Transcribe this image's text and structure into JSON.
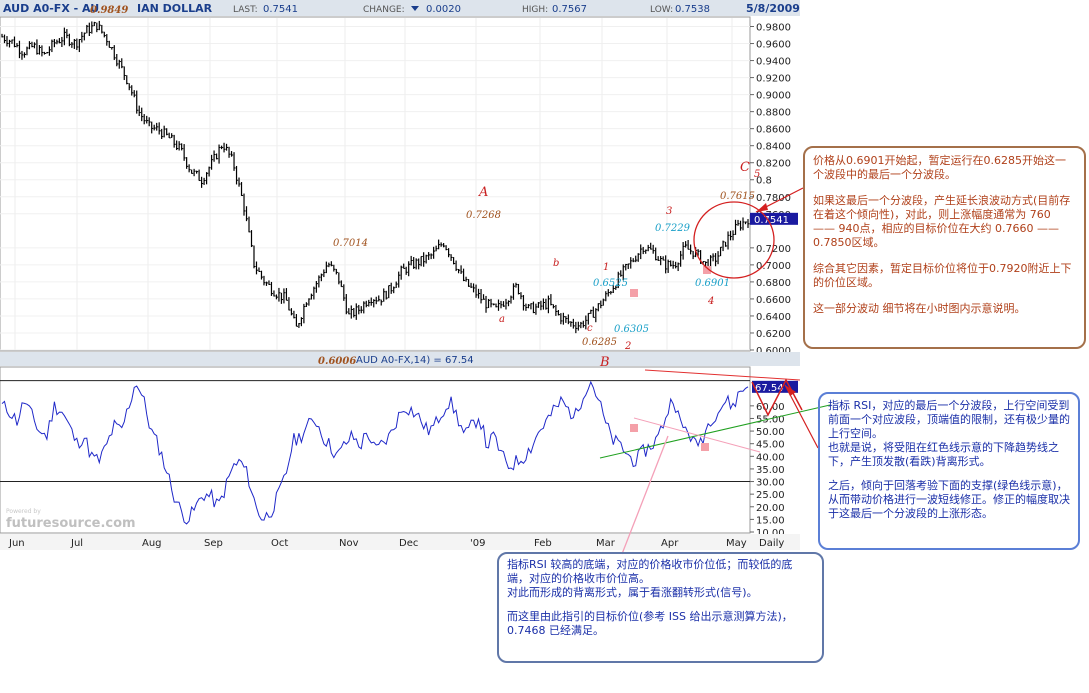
{
  "header": {
    "symbol": "AUD A0-FX - AU",
    "symbol_rest": "IAN DOLLAR",
    "peak_overlay": "0.9849",
    "last_label": "LAST:",
    "last": "0.7541",
    "change_label": "CHANGE:",
    "change": "0.0020",
    "high_label": "HIGH:",
    "high": "0.7567",
    "low_label": "LOW:",
    "low": "0.7538",
    "date": "5/8/2009"
  },
  "colors": {
    "price_line": "#000000",
    "rsi_line": "#1f28c8",
    "resistance_line": "#e23030",
    "support_line": "#20a020",
    "wave_red": "#c81e1e",
    "wave_brown": "#a0521e",
    "wave_cyan": "#1aa0c8",
    "box_brown": "#a4704a",
    "box_blue": "#5b7fd6",
    "last_badge": "#1a1aa0"
  },
  "chart_data": [
    {
      "type": "bar",
      "series": [
        {
          "name": "AUD A0-FX"
        }
      ],
      "period": "Daily",
      "ylim": [
        0.6,
        0.99
      ],
      "yticks": [
        "0.9800",
        "0.9600",
        "0.9400",
        "0.9200",
        "0.9000",
        "0.8800",
        "0.8600",
        "0.8400",
        "0.8200",
        "0.8",
        "0.7800",
        "0.7600",
        "0.7541",
        "0.7200",
        "0.7000",
        "0.6800",
        "0.6600",
        "0.6400",
        "0.6200",
        "0.6000"
      ],
      "xticks": [
        "Jun",
        "Jul",
        "Aug",
        "Sep",
        "Oct",
        "Nov",
        "Dec",
        "'09",
        "Feb",
        "Mar",
        "Apr",
        "May",
        "Daily"
      ],
      "close_path": [
        0.968,
        0.962,
        0.95,
        0.957,
        0.946,
        0.961,
        0.968,
        0.96,
        0.975,
        0.982,
        0.965,
        0.94,
        0.915,
        0.88,
        0.862,
        0.858,
        0.848,
        0.835,
        0.81,
        0.8,
        0.82,
        0.843,
        0.82,
        0.77,
        0.7,
        0.68,
        0.668,
        0.66,
        0.625,
        0.66,
        0.68,
        0.702,
        0.685,
        0.64,
        0.648,
        0.662,
        0.66,
        0.672,
        0.692,
        0.7,
        0.705,
        0.712,
        0.727,
        0.705,
        0.68,
        0.668,
        0.655,
        0.647,
        0.66,
        0.675,
        0.648,
        0.65,
        0.655,
        0.64,
        0.632,
        0.629,
        0.64,
        0.655,
        0.672,
        0.69,
        0.705,
        0.722,
        0.715,
        0.7,
        0.7,
        0.72,
        0.714,
        0.7,
        0.708,
        0.73,
        0.745,
        0.7541
      ],
      "annotations": [
        "0.7014",
        "0.6006",
        "0.7268",
        "0.6525",
        "0.6305",
        "0.6285",
        "0.7229",
        "0.6901",
        "0.7615"
      ],
      "wave_labels": [
        "A",
        "a",
        "b",
        "c",
        "B",
        "1",
        "2",
        "3",
        "4",
        "C",
        "5"
      ],
      "last": 0.7541
    },
    {
      "type": "line",
      "series": [
        {
          "name": "AUD A0-FX,14)"
        }
      ],
      "indicator_label": "AUD A0-FX,14) = 67.54",
      "ylim": [
        10,
        75
      ],
      "yticks": [
        "67.54",
        "60.00",
        "55.00",
        "50.00",
        "45.00",
        "40.00",
        "35.00",
        "30.00",
        "25.00",
        "20.00",
        "15.00",
        "10.00"
      ],
      "reference_lines": [
        70,
        30
      ],
      "last": 67.54,
      "rsi_path": [
        60,
        58,
        54,
        62,
        56,
        50,
        48,
        60,
        58,
        52,
        45,
        48,
        40,
        38,
        44,
        52,
        50,
        60,
        70,
        62,
        50,
        44,
        35,
        25,
        18,
        15,
        20,
        25,
        24,
        20,
        28,
        36,
        38,
        32,
        20,
        15,
        18,
        24,
        32,
        46,
        48,
        52,
        55,
        48,
        44,
        40,
        45,
        48,
        44,
        50,
        42,
        45,
        48,
        55,
        60,
        58,
        55,
        50,
        52,
        58,
        62,
        56,
        48,
        52,
        56,
        44,
        48,
        40,
        36,
        38,
        40,
        44,
        50,
        54,
        58,
        62,
        58,
        56,
        66,
        70,
        62,
        52,
        46,
        44,
        40,
        38,
        42,
        44,
        48,
        56,
        64,
        52,
        50,
        44,
        48,
        55,
        58,
        62,
        60,
        66,
        67.54
      ]
    }
  ],
  "watermark": {
    "line1": "Powered by",
    "line2": "futuresource.com"
  },
  "notes": {
    "brown": [
      "价格从0.6901开始起，暂定运行在0.6285开始这一个波段中的最后一个分波段。",
      "如果这最后一个分波段，产生延长浪波动方式(目前存在着这个倾向性)，对此，则上涨幅度通常为 760 —— 940点，相应的目标价位在大约 0.7660 —— 0.7850区域。",
      "综合其它因素，暂定目标价位将位于0.7920附近上下的价位区域。",
      "这一部分波动 细节将在小时图内示意说明。"
    ],
    "blue_right": [
      "指标 RSI，对应的最后一个分波段，上行空间受到前面一个对应波段，顶端值的限制，还有极少量的上行空间。\n也就是说，将受阻在红色线示意的下降趋势线之下，产生顶发散(看跌)背离形式。",
      "之后，倾向于回落考验下面的支撑(绿色线示意)，从而带动价格进行一波短线修正。修正的幅度取决于这最后一个分波段的上涨形态。"
    ],
    "blue_bottom": [
      "指标RSI 较高的底端，对应的价格收市价位低；而较低的底端，对应的价格收市价位高。\n对此而形成的背离形式，属于看涨翻转形式(信号)。",
      "而这里由此指引的目标价位(参考 ISS 给出示意测算方法)，0.7468 已经满足。"
    ]
  }
}
